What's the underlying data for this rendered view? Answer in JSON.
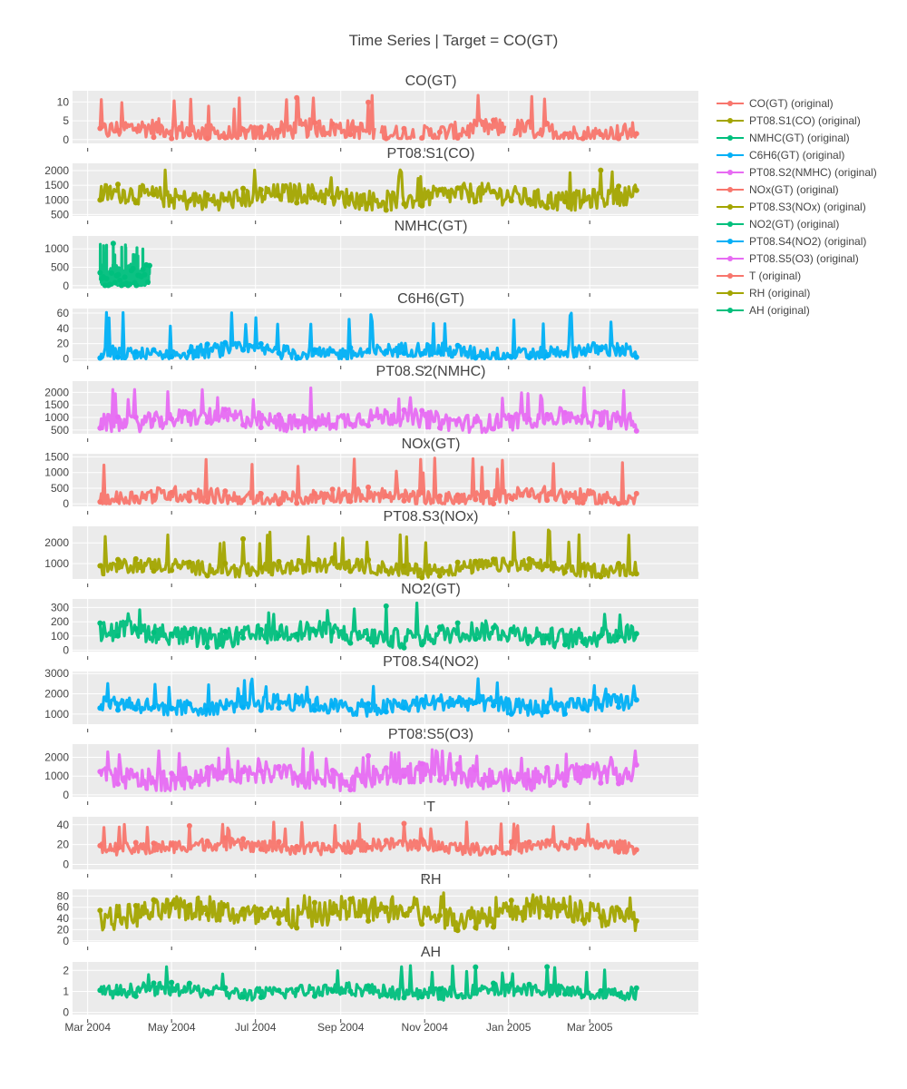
{
  "chart_data": {
    "type": "line",
    "title": "Time Series | Target = CO(GT)",
    "x_axis": {
      "ticks": [
        "Mar 2004",
        "May 2004",
        "Jul 2004",
        "Sep 2004",
        "Nov 2004",
        "Jan 2005",
        "Mar 2005"
      ],
      "tick_dates": [
        "2004-03-01",
        "2004-05-01",
        "2004-07-01",
        "2004-09-01",
        "2004-11-01",
        "2005-01-01",
        "2005-03-01"
      ],
      "range": [
        "2004-02-19",
        "2005-05-19"
      ],
      "data_range": [
        "2004-03-10",
        "2005-04-04"
      ]
    },
    "colors": {
      "salmon": "#F8766D",
      "olive": "#A3A500",
      "green": "#00BF7D",
      "blue": "#00B0F6",
      "pink": "#E76BF3"
    },
    "series": [
      {
        "name": "CO(GT)",
        "legend": "CO(GT) (original)",
        "color": "#F8766D",
        "ylim": [
          -1,
          13
        ],
        "yticks": [
          0,
          5,
          10
        ],
        "range_hint": [
          0.3,
          11.9
        ],
        "base_hint": 2.2,
        "spread_hint": 1.6,
        "gaps": [
          [
            "2004-09-26",
            "2004-09-30"
          ],
          [
            "2004-10-25",
            "2004-10-28"
          ],
          [
            "2004-12-30",
            "2005-01-04"
          ]
        ]
      },
      {
        "name": "PT08.S1(CO)",
        "legend": "PT08.S1(CO) (original)",
        "color": "#A3A500",
        "ylim": [
          450,
          2250
        ],
        "yticks": [
          500,
          1000,
          1500,
          2000
        ],
        "range_hint": [
          650,
          2040
        ],
        "base_hint": 1100,
        "spread_hint": 220
      },
      {
        "name": "NMHC(GT)",
        "legend": "NMHC(GT) (original)",
        "color": "#00BF7D",
        "ylim": [
          -80,
          1350
        ],
        "yticks": [
          0,
          500,
          1000
        ],
        "range_hint": [
          7,
          1189
        ],
        "base_hint": 220,
        "spread_hint": 180,
        "end": "2004-04-15"
      },
      {
        "name": "C6H6(GT)",
        "legend": "C6H6(GT) (original)",
        "color": "#00B0F6",
        "ylim": [
          -3,
          66
        ],
        "yticks": [
          0,
          20,
          40,
          60
        ],
        "range_hint": [
          0.1,
          63.7
        ],
        "base_hint": 9,
        "spread_hint": 6
      },
      {
        "name": "PT08.S2(NMHC)",
        "legend": "PT08.S2(NMHC) (original)",
        "color": "#E76BF3",
        "ylim": [
          350,
          2450
        ],
        "yticks": [
          500,
          1000,
          1500,
          2000
        ],
        "range_hint": [
          383,
          2214
        ],
        "base_hint": 900,
        "spread_hint": 230
      },
      {
        "name": "NOx(GT)",
        "legend": "NOx(GT) (original)",
        "color": "#F8766D",
        "ylim": [
          -80,
          1600
        ],
        "yticks": [
          0,
          500,
          1000,
          1500
        ],
        "range_hint": [
          2,
          1479
        ],
        "base_hint": 220,
        "spread_hint": 160
      },
      {
        "name": "PT08.S3(NOx)",
        "legend": "PT08.S3(NOx) (original)",
        "color": "#A3A500",
        "ylim": [
          250,
          2800
        ],
        "yticks": [
          1000,
          2000
        ],
        "range_hint": [
          322,
          2683
        ],
        "base_hint": 800,
        "spread_hint": 220
      },
      {
        "name": "NO2(GT)",
        "legend": "NO2(GT) (original)",
        "color": "#00BF7D",
        "ylim": [
          -10,
          360
        ],
        "yticks": [
          0,
          100,
          200,
          300
        ],
        "range_hint": [
          2,
          333
        ],
        "base_hint": 110,
        "spread_hint": 45
      },
      {
        "name": "PT08.S4(NO2)",
        "legend": "PT08.S4(NO2) (original)",
        "color": "#00B0F6",
        "ylim": [
          500,
          3100
        ],
        "yticks": [
          1000,
          2000,
          3000
        ],
        "range_hint": [
          551,
          2775
        ],
        "base_hint": 1450,
        "spread_hint": 260
      },
      {
        "name": "PT08.S5(O3)",
        "legend": "PT08.S5(O3) (original)",
        "color": "#E76BF3",
        "ylim": [
          -100,
          2700
        ],
        "yticks": [
          0,
          1000,
          2000
        ],
        "range_hint": [
          221,
          2523
        ],
        "base_hint": 1000,
        "spread_hint": 380
      },
      {
        "name": "T",
        "legend": "T (original)",
        "color": "#F8766D",
        "ylim": [
          -5,
          48
        ],
        "yticks": [
          0,
          20,
          40
        ],
        "range_hint": [
          -1.9,
          44.6
        ],
        "base_hint": 18,
        "spread_hint": 4
      },
      {
        "name": "RH",
        "legend": "RH (original)",
        "color": "#A3A500",
        "ylim": [
          -2,
          92
        ],
        "yticks": [
          0,
          20,
          40,
          60,
          80
        ],
        "range_hint": [
          9.2,
          88.7
        ],
        "base_hint": 49,
        "spread_hint": 14
      },
      {
        "name": "AH",
        "legend": "AH (original)",
        "color": "#00BF7D",
        "ylim": [
          -0.1,
          2.4
        ],
        "yticks": [
          0,
          1,
          2
        ],
        "range_hint": [
          0.18,
          2.23
        ],
        "base_hint": 1.0,
        "spread_hint": 0.2
      }
    ]
  }
}
